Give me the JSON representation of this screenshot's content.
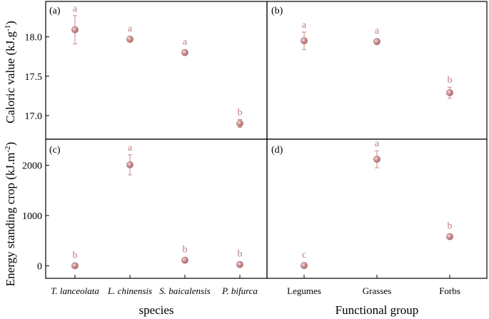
{
  "colors": {
    "marker": "#c98a8a",
    "marker_edge": "#a86a6a",
    "letter": "#c07a7a",
    "frame": "#000000"
  },
  "y_labels": {
    "top_main": "Caloric value (kJ.g",
    "top_sup": "-1",
    "top_close": ")",
    "bottom_main": "Energy standing crop (kJ.m",
    "bottom_sup": "-2",
    "bottom_close": ")"
  },
  "x_labels": {
    "left": "species",
    "right": "Functional group"
  },
  "chart_data": [
    {
      "type": "scatter",
      "panel": "(a)",
      "categories": [
        "T. lanceolata",
        "L. chinensis",
        "S. baicalensis",
        "P. bifurca"
      ],
      "values": [
        18.09,
        17.97,
        17.8,
        16.9
      ],
      "errors": [
        0.18,
        0.02,
        0.02,
        0.05
      ],
      "letters": [
        "a",
        "a",
        "a",
        "b"
      ],
      "ylim": [
        16.7,
        18.45
      ],
      "yticks": [
        17.0,
        17.5,
        18.0
      ],
      "ytick_labels": [
        "17.0",
        "17.5",
        "18.0"
      ]
    },
    {
      "type": "scatter",
      "panel": "(b)",
      "categories": [
        "Legumes",
        "Grasses",
        "Forbs"
      ],
      "values": [
        17.95,
        17.94,
        17.29
      ],
      "errors": [
        0.11,
        0.02,
        0.07
      ],
      "letters": [
        "a",
        "a",
        "b"
      ],
      "ylim": [
        16.7,
        18.45
      ]
    },
    {
      "type": "scatter",
      "panel": "(c)",
      "categories": [
        "T. lanceolata",
        "L. chinensis",
        "S. baicalensis",
        "P. bifurca"
      ],
      "values": [
        0,
        2010,
        110,
        25
      ],
      "errors": [
        0,
        200,
        15,
        10
      ],
      "letters": [
        "b",
        "a",
        "b",
        "b"
      ],
      "ylim": [
        -250,
        2520
      ],
      "yticks": [
        0,
        1000,
        2000
      ],
      "ytick_labels": [
        "0",
        "1000",
        "2000"
      ],
      "xlabel": "species"
    },
    {
      "type": "scatter",
      "panel": "(d)",
      "categories": [
        "Legumes",
        "Grasses",
        "Forbs"
      ],
      "values": [
        5,
        2120,
        580
      ],
      "errors": [
        0,
        170,
        40
      ],
      "letters": [
        "c",
        "a",
        "b"
      ],
      "ylim": [
        -250,
        2520
      ],
      "xlabel": "Functional group"
    }
  ]
}
